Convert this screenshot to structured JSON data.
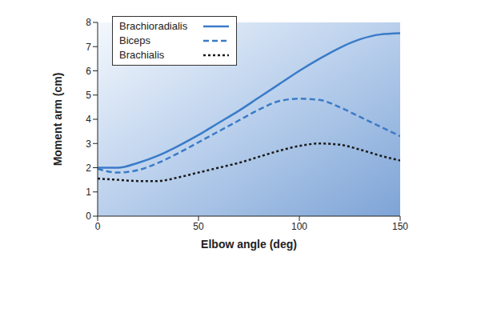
{
  "chart_data": {
    "type": "line",
    "x_label": "Elbow angle (deg)",
    "y_label": "Moment arm (cm)",
    "x": [
      0,
      10,
      20,
      30,
      40,
      50,
      60,
      70,
      80,
      90,
      100,
      110,
      120,
      130,
      140,
      150
    ],
    "series": [
      {
        "name": "Brachioradialis",
        "color": "#3a7bc8",
        "line_style": "solid",
        "values": [
          2.0,
          2.0,
          2.2,
          2.5,
          2.9,
          3.35,
          3.85,
          4.35,
          4.9,
          5.45,
          6.0,
          6.5,
          6.95,
          7.3,
          7.5,
          7.55
        ]
      },
      {
        "name": "Biceps",
        "color": "#3a7bc8",
        "line_style": "dashed",
        "values": [
          1.95,
          1.8,
          1.9,
          2.2,
          2.6,
          3.05,
          3.5,
          3.95,
          4.4,
          4.75,
          4.85,
          4.8,
          4.5,
          4.1,
          3.7,
          3.3
        ]
      },
      {
        "name": "Brachialis",
        "color": "#1a1a1a",
        "line_style": "dotted",
        "values": [
          1.55,
          1.5,
          1.45,
          1.45,
          1.6,
          1.8,
          2.0,
          2.2,
          2.45,
          2.7,
          2.9,
          3.0,
          2.95,
          2.75,
          2.5,
          2.3
        ]
      }
    ],
    "xlim": [
      0,
      150
    ],
    "xticks": [
      0,
      50,
      100,
      150
    ],
    "ylim": [
      0,
      8
    ],
    "yticks": [
      0,
      1,
      2,
      3,
      4,
      5,
      6,
      7,
      8
    ],
    "legend": "upper left",
    "grid": false
  }
}
